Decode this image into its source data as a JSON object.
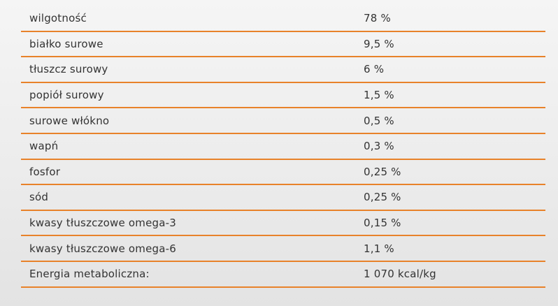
{
  "nutrition_table": {
    "rows": [
      {
        "label": "wilgotność",
        "value": "78 %"
      },
      {
        "label": "białko surowe",
        "value": "9,5 %"
      },
      {
        "label": "tłuszcz surowy",
        "value": "6 %"
      },
      {
        "label": "popiół surowy",
        "value": "1,5 %"
      },
      {
        "label": "surowe włókno",
        "value": "0,5 %"
      },
      {
        "label": "wapń",
        "value": "0,3 %"
      },
      {
        "label": "fosfor",
        "value": "0,25 %"
      },
      {
        "label": "sód",
        "value": "0,25 %"
      },
      {
        "label": "kwasy tłuszczowe omega-3",
        "value": "0,15 %"
      },
      {
        "label": "kwasy tłuszczowe omega-6",
        "value": "1,1 %"
      },
      {
        "label": "Energia metaboliczna:",
        "value": "1 070 kcal/kg"
      }
    ],
    "divider_color": "#e8822a"
  }
}
